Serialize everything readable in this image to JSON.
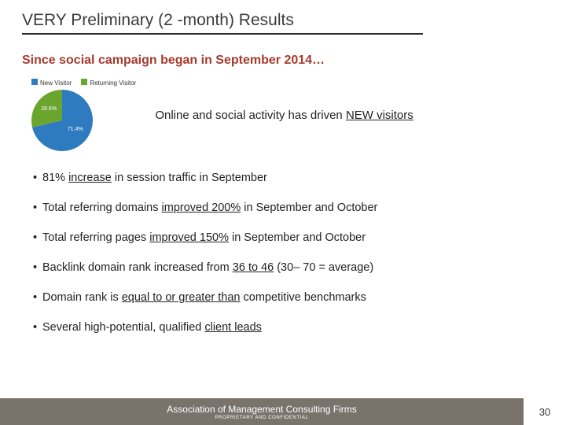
{
  "title": "VERY Preliminary (2 -month) Results",
  "subtitle": "Since social campaign began in September 2014…",
  "pie": {
    "legend": [
      {
        "label": "New Visitor",
        "color": "#2f7bbf"
      },
      {
        "label": "Returning Visitor",
        "color": "#6aa52e"
      }
    ],
    "slices": [
      {
        "value": 71.4,
        "color": "#2f7bbf",
        "label": "71.4%"
      },
      {
        "value": 28.6,
        "color": "#6aa52e",
        "label": "28.6%"
      }
    ],
    "size": 78
  },
  "driver_pre": "Online and social activity has driven ",
  "driver_underline": "NEW visitors",
  "bullets": [
    {
      "pre": "81% ",
      "u": "increase",
      "post": " in session traffic in September"
    },
    {
      "pre": "Total referring domains ",
      "u": "improved 200%",
      "post": " in September and October"
    },
    {
      "pre": "Total referring pages ",
      "u": "improved 150%",
      "post": " in September and October"
    },
    {
      "pre": "Backlink domain rank increased from ",
      "u": "36 to 46",
      "post": " (30– 70 = average)"
    },
    {
      "pre": "Domain rank is ",
      "u": "equal to or greater than",
      "post": " competitive benchmarks"
    },
    {
      "pre": "Several high-potential, qualified ",
      "u": "client leads",
      "post": ""
    }
  ],
  "footer": {
    "org": "Association of Management Consulting Firms",
    "tag": "PROPRIETARY AND CONFIDENTIAL",
    "page": "30",
    "bg": "#7a736c"
  }
}
